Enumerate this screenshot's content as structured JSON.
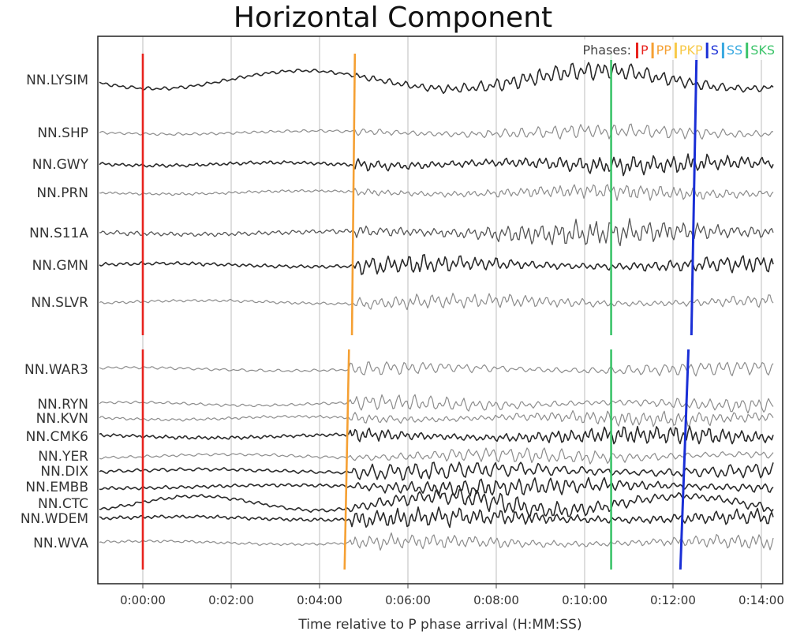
{
  "chart_data": {
    "type": "line",
    "title": "Horizontal Component",
    "xlabel": "Time relative to P phase arrival (H:MM:SS)",
    "ylabel": "",
    "x_tick_seconds": [
      0,
      120,
      240,
      360,
      480,
      600,
      720,
      840
    ],
    "x_tick_labels": [
      "0:00:00",
      "0:02:00",
      "0:04:00",
      "0:06:00",
      "0:08:00",
      "0:10:00",
      "0:12:00",
      "0:14:00"
    ],
    "xlim_seconds": [
      -60,
      870
    ],
    "grid": true,
    "legend": {
      "label": "Phases:",
      "position": "top-right",
      "items": [
        {
          "name": "P",
          "color": "#e8231e"
        },
        {
          "name": "PP",
          "color": "#f5a033"
        },
        {
          "name": "PKP",
          "color": "#f7c948"
        },
        {
          "name": "S",
          "color": "#1a2fd6"
        },
        {
          "name": "SS",
          "color": "#37a8e0"
        },
        {
          "name": "SKS",
          "color": "#3cc46a"
        }
      ]
    },
    "panels": [
      {
        "name": "upper",
        "stations": [
          {
            "name": "NN.LYSIM",
            "style": "dark"
          },
          {
            "name": "NN.SHP",
            "style": "light"
          },
          {
            "name": "NN.GWY",
            "style": "dark"
          },
          {
            "name": "NN.PRN",
            "style": "light"
          },
          {
            "name": "NN.S11A",
            "style": "mixed"
          },
          {
            "name": "NN.GMN",
            "style": "dark"
          },
          {
            "name": "NN.SLVR",
            "style": "light"
          }
        ],
        "phase_picks": [
          {
            "phase": "P",
            "start_seconds": 0,
            "end_seconds": 0
          },
          {
            "phase": "PP",
            "start_seconds": 288,
            "end_seconds": 284
          },
          {
            "phase": "SKS",
            "start_seconds": 636,
            "end_seconds": 636
          },
          {
            "phase": "S",
            "start_seconds": 752,
            "end_seconds": 745
          }
        ]
      },
      {
        "name": "lower",
        "stations": [
          {
            "name": "NN.WAR3",
            "style": "light"
          },
          {
            "name": "NN.RYN",
            "style": "light"
          },
          {
            "name": "NN.KVN",
            "style": "light"
          },
          {
            "name": "NN.CMK6",
            "style": "dark"
          },
          {
            "name": "NN.YER",
            "style": "light"
          },
          {
            "name": "NN.DIX",
            "style": "dark"
          },
          {
            "name": "NN.EMBB",
            "style": "dark"
          },
          {
            "name": "NN.CTC",
            "style": "dark"
          },
          {
            "name": "NN.WDEM",
            "style": "dark"
          },
          {
            "name": "NN.WVA",
            "style": "light"
          }
        ],
        "phase_picks": [
          {
            "phase": "P",
            "start_seconds": 0,
            "end_seconds": 0
          },
          {
            "phase": "PP",
            "start_seconds": 280,
            "end_seconds": 274
          },
          {
            "phase": "SKS",
            "start_seconds": 636,
            "end_seconds": 636
          },
          {
            "phase": "S",
            "start_seconds": 741,
            "end_seconds": 730
          }
        ]
      }
    ]
  }
}
